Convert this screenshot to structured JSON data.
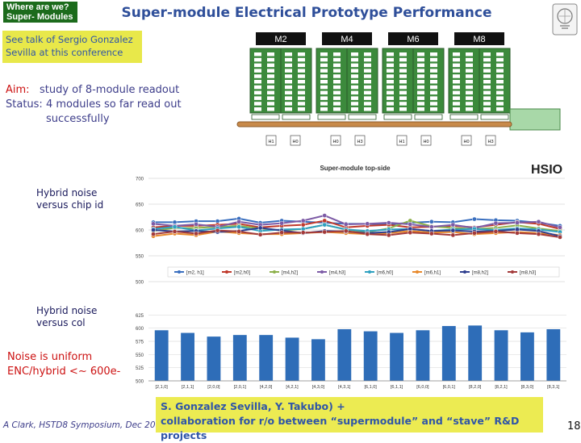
{
  "header": {
    "badge_line1": "Where are we?",
    "badge_line2": "Super- Modules",
    "title": "Super-module Electrical Prototype Performance"
  },
  "note": "See talk of Sergio Gonzalez Sevilla at this conference",
  "aim": {
    "aim_label": "Aim:",
    "aim_text": "study of 8-module readout",
    "status_label": "Status:",
    "status_text": "4 modules so far read out",
    "status_text2": "successfully"
  },
  "diagram": {
    "module_labels": [
      "M2",
      "M4",
      "M6",
      "M8"
    ],
    "hybrid_labels": [
      "H1",
      "H0",
      "H0",
      "H3",
      "H1",
      "H0",
      "H0",
      "H3"
    ]
  },
  "chart_labels": {
    "chart1_side_label": "Hybrid noise versus chip id",
    "chart2_side_label": "Hybrid noise versus col",
    "chart1_title": "Super-module top-side",
    "brand": "HSIO"
  },
  "conclusion": {
    "line1": "Noise is uniform",
    "line2": "ENC/hybrid <~ 600e-"
  },
  "footer": {
    "citation": "A Clark, HSTD8 Symposium, Dec 2011",
    "box_line1": "S. Gonzalez Sevilla, Y. Takubo) +",
    "box_line2": "collaboration for r/o between “supermodule” and “stave” R&D projects",
    "page_number": "18"
  },
  "colors": {
    "module_green": "#3c8a3c",
    "badge_green": "#1c6b1c",
    "note_yellow": "#e8e84a",
    "title_blue": "#2f4f9a",
    "bar_blue": "#2e6db8"
  },
  "chart_data": [
    {
      "type": "line",
      "title": "Super-module top-side",
      "xlabel": "",
      "ylabel": "",
      "ylim": [
        500,
        700
      ],
      "yticks": [
        500,
        550,
        600,
        650,
        700
      ],
      "x": [
        1,
        2,
        3,
        4,
        5,
        6,
        7,
        8,
        9,
        10,
        11,
        12,
        13,
        14,
        15,
        16,
        17,
        18,
        19,
        20
      ],
      "series": [
        {
          "name": "[m2, h1]",
          "color": "#3a6fbf",
          "values": [
            615,
            615,
            617,
            617,
            622,
            614,
            618,
            616,
            614,
            612,
            612,
            611,
            614,
            616,
            615,
            621,
            619,
            618,
            614,
            608
          ]
        },
        {
          "name": "[m2,h0]",
          "color": "#c0392b",
          "values": [
            605,
            608,
            608,
            610,
            612,
            605,
            608,
            610,
            618,
            605,
            608,
            610,
            605,
            606,
            608,
            605,
            610,
            615,
            612,
            602
          ]
        },
        {
          "name": "[m4,h2]",
          "color": "#8db04a",
          "values": [
            598,
            604,
            604,
            606,
            608,
            603,
            599,
            602,
            610,
            601,
            596,
            603,
            618,
            607,
            604,
            602,
            604,
            609,
            603,
            598
          ]
        },
        {
          "name": "[m4,h3]",
          "color": "#7d5ba6",
          "values": [
            612,
            608,
            611,
            606,
            616,
            610,
            613,
            618,
            628,
            611,
            612,
            614,
            611,
            606,
            610,
            604,
            613,
            614,
            616,
            605
          ]
        },
        {
          "name": "[m6,h0]",
          "color": "#2fa0c0",
          "values": [
            602,
            606,
            599,
            603,
            606,
            598,
            601,
            602,
            610,
            601,
            598,
            601,
            602,
            598,
            601,
            602,
            600,
            603,
            601,
            596
          ]
        },
        {
          "name": "[m6,h1]",
          "color": "#e8892b",
          "values": [
            588,
            593,
            590,
            597,
            594,
            592,
            592,
            594,
            596,
            594,
            592,
            594,
            598,
            595,
            596,
            592,
            594,
            596,
            594,
            590
          ]
        },
        {
          "name": "[m8,h2]",
          "color": "#2f3f8f",
          "values": [
            600,
            597,
            598,
            596,
            598,
            604,
            599,
            594,
            598,
            597,
            594,
            596,
            602,
            598,
            599,
            597,
            598,
            601,
            598,
            588
          ]
        },
        {
          "name": "[m8,h3]",
          "color": "#a33a3a",
          "values": [
            592,
            597,
            593,
            599,
            597,
            591,
            595,
            595,
            596,
            598,
            592,
            590,
            595,
            593,
            590,
            594,
            597,
            594,
            592,
            586
          ]
        }
      ]
    },
    {
      "type": "bar",
      "title": "",
      "xlabel": "",
      "ylabel": "",
      "ylim": [
        500,
        650
      ],
      "yticks": [
        500,
        525,
        550,
        575,
        600,
        625
      ],
      "categories": [
        "[2,1,0]",
        "[2,1,1]",
        "[2,0,0]",
        "[2,0,1]",
        "[4,2,0]",
        "[4,2,1]",
        "[4,3,0]",
        "[4,3,1]",
        "[6,1,0]",
        "[6,1,1]",
        "[6,0,0]",
        "[6,0,1]",
        "[8,2,0]",
        "[8,2,1]",
        "[8,3,0]",
        "[8,3,1]"
      ],
      "values": [
        596,
        591,
        584,
        587,
        587,
        582,
        579,
        598,
        594,
        591,
        596,
        604,
        605,
        596,
        592,
        598
      ]
    }
  ]
}
